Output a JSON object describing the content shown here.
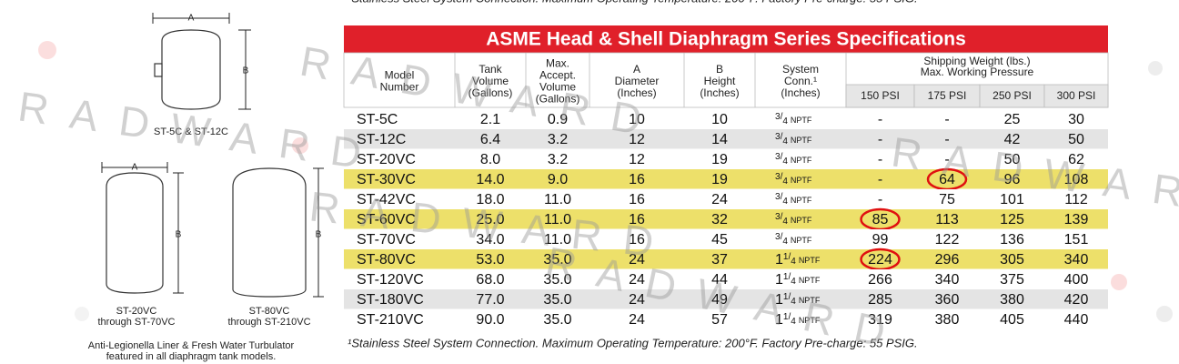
{
  "watermark": "RADWARD",
  "diagrams": {
    "dimension_a": "A",
    "dimension_b": "B",
    "small_label": "ST-5C & ST-12C",
    "left_label": [
      "ST-20VC",
      "through ST-70VC"
    ],
    "right_label": [
      "ST-80VC",
      "through ST-210VC"
    ],
    "caption": [
      "Anti-Legionella Liner & Fresh Water Turbulator",
      "featured in all diaphragm tank models."
    ]
  },
  "table": {
    "title": "ASME Head & Shell Diaphragm Series Specifications",
    "headers": [
      [
        "Model",
        "Number"
      ],
      [
        "Tank",
        "Volume",
        "(Gallons)"
      ],
      [
        "Max.",
        "Accept.",
        "Volume",
        "(Gallons)"
      ],
      [
        "A",
        "Diameter",
        "(Inches)"
      ],
      [
        "B",
        "Height",
        "(Inches)"
      ],
      [
        "System",
        "Conn.¹",
        "(Inches)"
      ]
    ],
    "weight_header": [
      "Shipping Weight (lbs.)",
      "Max. Working Pressure"
    ],
    "pressures": [
      "150 PSI",
      "175 PSI",
      "250 PSI",
      "300 PSI"
    ],
    "rows": [
      {
        "model": "ST-5C",
        "volume": "2.1",
        "accept": "0.9",
        "diameter": "10",
        "height": "10",
        "conn": {
          "num": "3",
          "den": "4",
          "unit": "NPTF"
        },
        "weights": [
          "-",
          "-",
          "25",
          "30"
        ]
      },
      {
        "model": "ST-12C",
        "volume": "6.4",
        "accept": "3.2",
        "diameter": "12",
        "height": "14",
        "conn": {
          "num": "3",
          "den": "4",
          "unit": "NPTF"
        },
        "weights": [
          "-",
          "-",
          "42",
          "50"
        ]
      },
      {
        "model": "ST-20VC",
        "volume": "8.0",
        "accept": "3.2",
        "diameter": "12",
        "height": "19",
        "conn": {
          "num": "3",
          "den": "4",
          "unit": "NPTF"
        },
        "weights": [
          "-",
          "-",
          "50",
          "62"
        ]
      },
      {
        "model": "ST-30VC",
        "volume": "14.0",
        "accept": "9.0",
        "diameter": "16",
        "height": "19",
        "conn": {
          "num": "3",
          "den": "4",
          "unit": "NPTF"
        },
        "weights": [
          "-",
          "64",
          "96",
          "108"
        ],
        "highlight": true,
        "circled": 1
      },
      {
        "model": "ST-42VC",
        "volume": "18.0",
        "accept": "11.0",
        "diameter": "16",
        "height": "24",
        "conn": {
          "num": "3",
          "den": "4",
          "unit": "NPTF"
        },
        "weights": [
          "-",
          "75",
          "101",
          "112"
        ]
      },
      {
        "model": "ST-60VC",
        "volume": "25.0",
        "accept": "11.0",
        "diameter": "16",
        "height": "32",
        "conn": {
          "num": "3",
          "den": "4",
          "unit": "NPTF"
        },
        "weights": [
          "85",
          "113",
          "125",
          "139"
        ],
        "highlight": true,
        "circled": 0
      },
      {
        "model": "ST-70VC",
        "volume": "34.0",
        "accept": "11.0",
        "diameter": "16",
        "height": "45",
        "conn": {
          "num": "3",
          "den": "4",
          "unit": "NPTF"
        },
        "weights": [
          "99",
          "122",
          "136",
          "151"
        ]
      },
      {
        "model": "ST-80VC",
        "volume": "53.0",
        "accept": "35.0",
        "diameter": "24",
        "height": "37",
        "conn": {
          "whole": "1",
          "num": "1",
          "den": "4",
          "unit": "NPTF"
        },
        "weights": [
          "224",
          "296",
          "305",
          "340"
        ],
        "highlight": true,
        "circled": 0
      },
      {
        "model": "ST-120VC",
        "volume": "68.0",
        "accept": "35.0",
        "diameter": "24",
        "height": "44",
        "conn": {
          "whole": "1",
          "num": "1",
          "den": "4",
          "unit": "NPTF"
        },
        "weights": [
          "266",
          "340",
          "375",
          "400"
        ]
      },
      {
        "model": "ST-180VC",
        "volume": "77.0",
        "accept": "35.0",
        "diameter": "24",
        "height": "49",
        "conn": {
          "whole": "1",
          "num": "1",
          "den": "4",
          "unit": "NPTF"
        },
        "weights": [
          "285",
          "360",
          "380",
          "420"
        ]
      },
      {
        "model": "ST-210VC",
        "volume": "90.0",
        "accept": "35.0",
        "diameter": "24",
        "height": "57",
        "conn": {
          "whole": "1",
          "num": "1",
          "den": "4",
          "unit": "NPTF"
        },
        "weights": [
          "319",
          "380",
          "405",
          "440"
        ]
      }
    ],
    "footnote": "¹Stainless Steel System Connection.  Maximum Operating Temperature: 200°F. Factory Pre-charge: 55 PSIG."
  }
}
